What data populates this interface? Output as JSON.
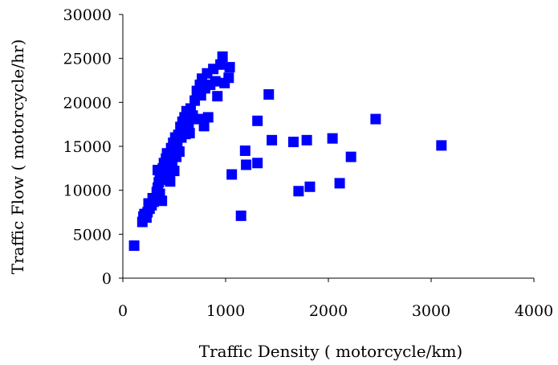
{
  "chart_data": {
    "type": "scatter",
    "title": "",
    "xlabel": "Traffic Density ( motorcycle/km)",
    "ylabel": "Traffic Flow ( motorcycle/hr)",
    "xlim": [
      0,
      4000
    ],
    "ylim": [
      0,
      30000
    ],
    "x_ticks": [
      "0",
      "1000",
      "2000",
      "3000",
      "4000"
    ],
    "y_ticks": [
      "0",
      "5000",
      "10000",
      "15000",
      "20000",
      "25000",
      "30000"
    ],
    "grid": false,
    "legend": "none",
    "marker": "square",
    "marker_color": "#0000ff",
    "series": [
      {
        "points": [
          [
            110,
            3700
          ],
          [
            190,
            6400
          ],
          [
            200,
            7000
          ],
          [
            210,
            7300
          ],
          [
            230,
            6900
          ],
          [
            240,
            7500
          ],
          [
            260,
            7900
          ],
          [
            250,
            8500
          ],
          [
            280,
            8300
          ],
          [
            290,
            9100
          ],
          [
            300,
            8700
          ],
          [
            320,
            9000
          ],
          [
            330,
            9800
          ],
          [
            340,
            10300
          ],
          [
            350,
            10900
          ],
          [
            360,
            11400
          ],
          [
            370,
            12000
          ],
          [
            340,
            12300
          ],
          [
            390,
            12500
          ],
          [
            360,
            9600
          ],
          [
            380,
            8800
          ],
          [
            400,
            13100
          ],
          [
            420,
            13600
          ],
          [
            420,
            11200
          ],
          [
            400,
            12200
          ],
          [
            430,
            14200
          ],
          [
            440,
            13400
          ],
          [
            450,
            11800
          ],
          [
            460,
            12600
          ],
          [
            460,
            11000
          ],
          [
            470,
            14800
          ],
          [
            480,
            13200
          ],
          [
            490,
            15400
          ],
          [
            500,
            14200
          ],
          [
            500,
            12200
          ],
          [
            510,
            16000
          ],
          [
            520,
            13800
          ],
          [
            530,
            15000
          ],
          [
            540,
            16300
          ],
          [
            550,
            14400
          ],
          [
            560,
            17200
          ],
          [
            570,
            16000
          ],
          [
            580,
            17800
          ],
          [
            590,
            16800
          ],
          [
            600,
            18300
          ],
          [
            610,
            16400
          ],
          [
            620,
            19000
          ],
          [
            640,
            17600
          ],
          [
            650,
            16500
          ],
          [
            660,
            19300
          ],
          [
            680,
            18500
          ],
          [
            700,
            20200
          ],
          [
            720,
            21300
          ],
          [
            740,
            18100
          ],
          [
            750,
            22000
          ],
          [
            760,
            20800
          ],
          [
            770,
            22700
          ],
          [
            790,
            17300
          ],
          [
            800,
            21600
          ],
          [
            820,
            23300
          ],
          [
            830,
            18300
          ],
          [
            850,
            22000
          ],
          [
            880,
            23800
          ],
          [
            900,
            22400
          ],
          [
            920,
            20700
          ],
          [
            950,
            24300
          ],
          [
            970,
            25200
          ],
          [
            990,
            22200
          ],
          [
            1030,
            22800
          ],
          [
            1040,
            24000
          ],
          [
            1060,
            11800
          ],
          [
            1150,
            7100
          ],
          [
            1190,
            14500
          ],
          [
            1200,
            12900
          ],
          [
            1310,
            17900
          ],
          [
            1310,
            13100
          ],
          [
            1420,
            20900
          ],
          [
            1450,
            15700
          ],
          [
            1660,
            15500
          ],
          [
            1710,
            9900
          ],
          [
            1790,
            15700
          ],
          [
            1820,
            10400
          ],
          [
            2040,
            15900
          ],
          [
            2110,
            10800
          ],
          [
            2220,
            13800
          ],
          [
            2460,
            18100
          ],
          [
            3100,
            15100
          ]
        ]
      }
    ]
  }
}
